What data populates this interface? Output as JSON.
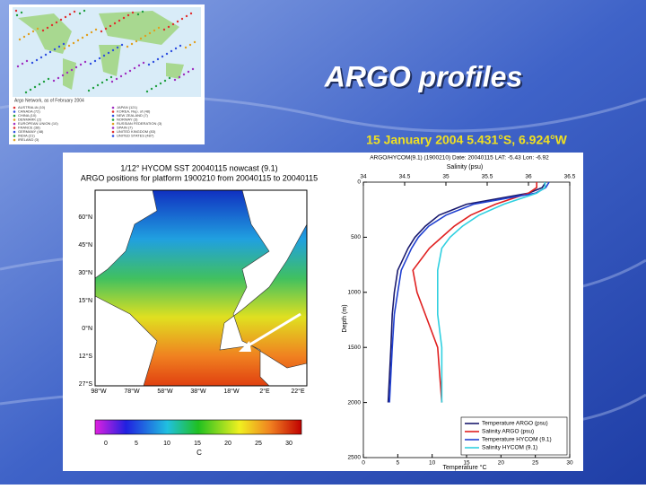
{
  "header": {
    "title": "ARGO profiles",
    "subtitle": "15 January 2004 5.431°S, 6.924°W"
  },
  "inset_map": {
    "caption": "Argo Network, as of February 2004",
    "legend": [
      "AUSTRALIA (10)",
      "CANADA (72)",
      "CHINA (10)",
      "DENMARK (2)",
      "EUROPEAN UNION (10)",
      "FRANCE (38)",
      "GERMANY (48)",
      "INDIA (21)",
      "IRELAND (3)",
      "JAPAN (121)",
      "KOREA, Rep. of (48)",
      "NEW ZEALAND (7)",
      "NORWAY (3)",
      "RUSSIAN FEDERATION (3)",
      "SPAIN (7)",
      "UNITED KINGDOM (83)",
      "UNITED STATES (487)"
    ]
  },
  "sst_map": {
    "title": [
      "1/12° HYCOM SST 20040115 nowcast (9.1)",
      "ARGO positions for platform 1900210 from 20040115 to 20040115"
    ],
    "lat_labels": [
      "60°N",
      "45°N",
      "30°N",
      "15°N",
      "0°N",
      "12°S",
      "27°S"
    ],
    "lon_labels": [
      "98°W",
      "78°W",
      "58°W",
      "38°W",
      "18°W",
      "2°E",
      "22°E"
    ],
    "colorbar_ticks": [
      "0",
      "5",
      "10",
      "15",
      "20",
      "25",
      "30"
    ],
    "colorbar_unit": "C"
  },
  "profile_chart": {
    "type": "line",
    "title": "ARGO/HYCOM(9.1) (1900210) Date: 20040115 LAT: -5.43 Lon: -6.92",
    "x_label": "Temperature °C",
    "x2_label": "Salinity (psu)",
    "y_label": "Depth (m)",
    "xlim": [
      0,
      30
    ],
    "xticks": [
      0,
      5,
      10,
      15,
      20,
      25,
      30
    ],
    "x2lim": [
      34,
      36.5
    ],
    "x2ticks": [
      34,
      34.5,
      35,
      35.5,
      36,
      36.5
    ],
    "ylim": [
      0,
      2500
    ],
    "yticks": [
      0,
      500,
      1000,
      1500,
      2000,
      2500
    ],
    "legend": "lower right",
    "depth": [
      0,
      50,
      100,
      200,
      300,
      400,
      500,
      600,
      800,
      1000,
      1200,
      1500,
      2000
    ],
    "series": [
      {
        "name": "Temperature ARGO (psu)",
        "color": "#1a1a6e",
        "axis": "x",
        "values": [
          26.5,
          26,
          24,
          15,
          11,
          9,
          7.5,
          6.5,
          5,
          4.5,
          4.2,
          4,
          3.6
        ]
      },
      {
        "name": "Salinity ARGO (psu)",
        "color": "#e02020",
        "axis": "x2",
        "values": [
          36.1,
          36.1,
          36,
          35.6,
          35.3,
          35.1,
          34.95,
          34.8,
          34.6,
          34.65,
          34.75,
          34.9,
          34.95
        ]
      },
      {
        "name": "Temperature HYCOM (9.1)",
        "color": "#2040d0",
        "axis": "x",
        "values": [
          27,
          26.5,
          25,
          16,
          12,
          9.5,
          8,
          7,
          5.5,
          5,
          4.5,
          4.2,
          3.8
        ]
      },
      {
        "name": "Salinity HYCOM (9.1)",
        "color": "#30d0e0",
        "axis": "x2",
        "values": [
          36.2,
          36.2,
          36.1,
          35.7,
          35.4,
          35.2,
          35.05,
          34.95,
          34.9,
          34.9,
          34.9,
          34.95,
          34.95
        ]
      }
    ]
  }
}
